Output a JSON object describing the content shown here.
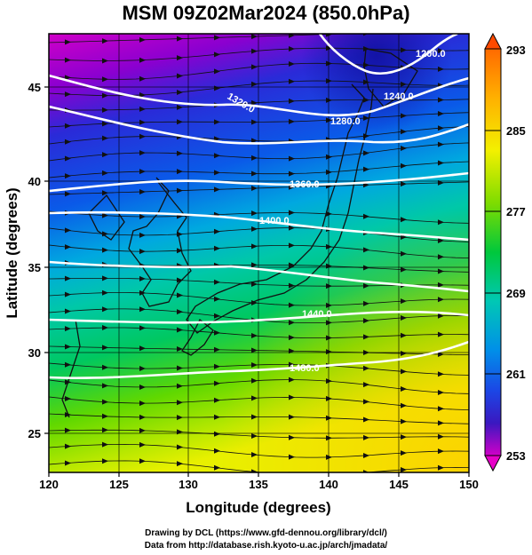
{
  "title": "MSM 09Z02Mar2024 (850.0hPa)",
  "axes": {
    "xlabel": "Longitude (degrees)",
    "ylabel": "Latitude  (degrees)",
    "xticks": [
      "120",
      "125",
      "130",
      "135",
      "140",
      "145",
      "150"
    ],
    "yticks": [
      "25",
      "30",
      "35",
      "40",
      "45"
    ]
  },
  "colorbar": {
    "ticks": [
      "293",
      "285",
      "277",
      "269",
      "261",
      "253"
    ],
    "colors": [
      "#e8125f",
      "#ff6a00",
      "#ffb000",
      "#f3f000",
      "#7ddc00",
      "#00c83c",
      "#00c8b4",
      "#0090e8",
      "#1b47e6",
      "#1515b0",
      "#7a00c8",
      "#e600c8"
    ]
  },
  "contours": [
    {
      "label": "1200.0"
    },
    {
      "label": "1240.0"
    },
    {
      "label": "1280.0"
    },
    {
      "label": "1320.0"
    },
    {
      "label": "1360.0"
    },
    {
      "label": "1400.0"
    },
    {
      "label": "1440.0"
    },
    {
      "label": "1480.0"
    }
  ],
  "credits": {
    "line1": "Drawing by DCL (https://www.gfd-dennou.org/library/dcl/)",
    "line2": "Data from http://database.rish.kyoto-u.ac.jp/arch/jmadata/"
  }
}
